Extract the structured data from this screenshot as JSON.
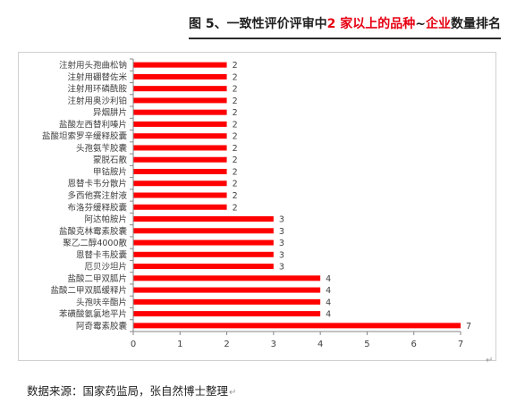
{
  "title": {
    "prefix": "图 5、一致性评价评审中",
    "highlight_a": "2 家以上的品种",
    "tilde": "~",
    "highlight_b": "企业",
    "suffix": "数量排名"
  },
  "source_note": "数据来源：国家药监局，张自然博士整理",
  "return_mark": "↵",
  "chart_data": {
    "type": "bar",
    "orientation": "horizontal",
    "title": "",
    "xlabel": "",
    "ylabel": "",
    "xlim": [
      0,
      7
    ],
    "x_ticks": [
      "0",
      "1",
      "2",
      "3",
      "4",
      "5",
      "6",
      "7"
    ],
    "bar_color": "#ff0000",
    "grid": false,
    "legend": "none",
    "categories": [
      "注射用头孢曲松钠",
      "注射用硼替佐米",
      "注射用环磷酰胺",
      "注射用奥沙利铂",
      "异烟肼片",
      "盐酸左西替利嗪片",
      "盐酸坦索罗辛缓释胶囊",
      "头孢氨苄胶囊",
      "蒙脱石散",
      "甲钴胺片",
      "恩替卡韦分散片",
      "多西他赛注射液",
      "布洛芬缓释胶囊",
      "阿达帕胺片",
      "盐酸克林霉素胶囊",
      "聚乙二醇4000散",
      "恩替卡韦胶囊",
      "厄贝沙坦片",
      "盐酸二甲双胍片",
      "盐酸二甲双胍缓释片",
      "头孢呋辛酯片",
      "苯磺酸氨氯地平片",
      "阿奇霉素胶囊"
    ],
    "values": [
      2,
      2,
      2,
      2,
      2,
      2,
      2,
      2,
      2,
      2,
      2,
      2,
      2,
      3,
      3,
      3,
      3,
      3,
      4,
      4,
      4,
      4,
      7
    ],
    "data_labels": [
      "2",
      "2",
      "2",
      "2",
      "2",
      "2",
      "2",
      "2",
      "2",
      "2",
      "2",
      "2",
      "2",
      "3",
      "3",
      "3",
      "3",
      "3",
      "4",
      "4",
      "4",
      "4",
      "7"
    ]
  }
}
